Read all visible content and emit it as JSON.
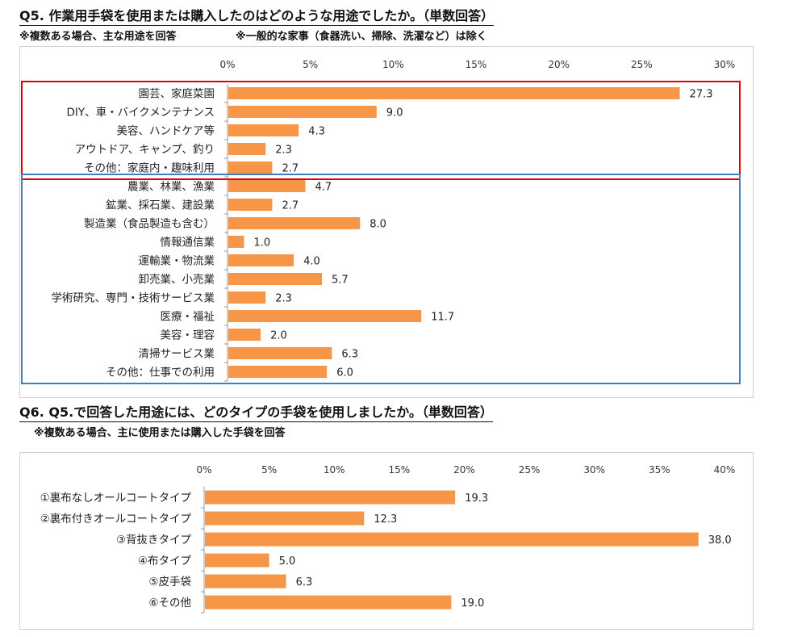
{
  "q5": {
    "title": "Q5. 作業用手袋を使用または購入したのはどのような用途でしたか。（単数回答）",
    "note1": "※複数ある場合、主な用途を回答",
    "note2": "※一般的な家事（食器洗い、掃除、洗濯など）は除く"
  },
  "q6": {
    "title": "Q6. Q5.で回答した用途には、どのタイプの手袋を使用しましたか。（単数回答）",
    "note1": "※複数ある場合、主に使用または購入した手袋を回答"
  },
  "chart_data": [
    {
      "type": "bar",
      "orientation": "horizontal",
      "categories": [
        "園芸、家庭菜園",
        "DIY、車・バイクメンテナンス",
        "美容、ハンドケア等",
        "アウトドア、キャンプ、釣り",
        "その他：家庭内・趣味利用",
        "農業、林業、漁業",
        "鉱業、採石業、建設業",
        "製造業（食品製造も含む）",
        "情報通信業",
        "運輸業・物流業",
        "卸売業、小売業",
        "学術研究、専門・技術サービス業",
        "医療・福祉",
        "美容・理容",
        "清掃サービス業",
        "その他：仕事での利用"
      ],
      "values": [
        27.3,
        9.0,
        4.3,
        2.3,
        2.7,
        4.7,
        2.7,
        8.0,
        1.0,
        4.0,
        5.7,
        2.3,
        11.7,
        2.0,
        6.3,
        6.0
      ],
      "data_labels": [
        "27.3",
        "9.0",
        "4.3",
        "2.3",
        "2.7",
        "4.7",
        "2.7",
        "8.0",
        "1.0",
        "4.0",
        "5.7",
        "2.3",
        "11.7",
        "2.0",
        "6.3",
        "6.0"
      ],
      "xlim": [
        0,
        30
      ],
      "ticks": [
        "0%",
        "5%",
        "10%",
        "15%",
        "20%",
        "25%",
        "30%"
      ],
      "axis_position": "top",
      "bar_color": "#F79646",
      "groups": [
        {
          "range": [
            0,
            4
          ],
          "border_color": "#E00000"
        },
        {
          "range": [
            5,
            15
          ],
          "border_color": "#3F7FBF"
        }
      ]
    },
    {
      "type": "bar",
      "orientation": "horizontal",
      "categories": [
        "①裏布なしオールコートタイプ",
        "②裏布付きオールコートタイプ",
        "③背抜きタイプ",
        "④布タイプ",
        "⑤皮手袋",
        "⑥その他"
      ],
      "values": [
        19.3,
        12.3,
        38.0,
        5.0,
        6.3,
        19.0
      ],
      "data_labels": [
        "19.3",
        "12.3",
        "38.0",
        "5.0",
        "6.3",
        "19.0"
      ],
      "xlim": [
        0,
        40
      ],
      "ticks": [
        "0%",
        "5%",
        "10%",
        "15%",
        "20%",
        "25%",
        "30%",
        "35%",
        "40%"
      ],
      "axis_position": "top",
      "bar_color": "#F79646"
    }
  ]
}
